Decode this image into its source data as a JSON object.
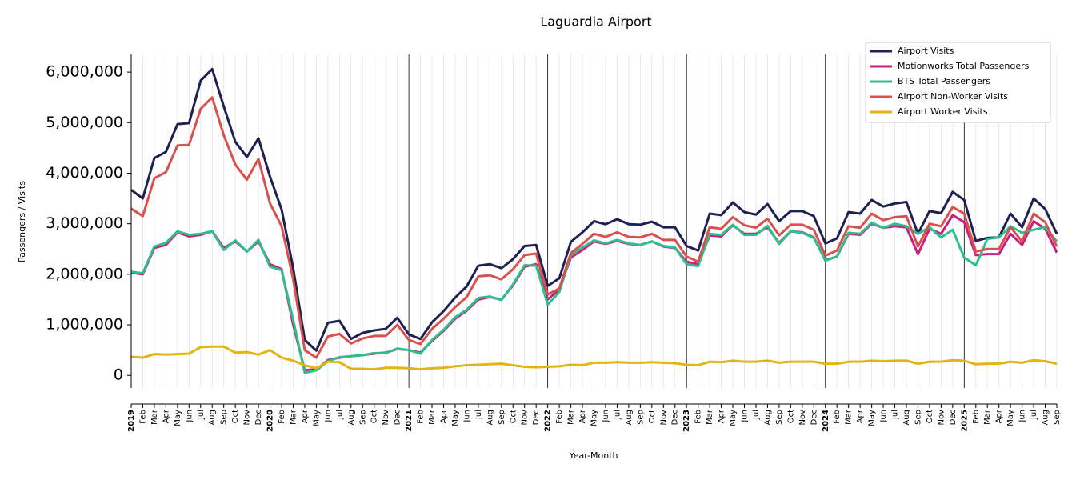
{
  "chart_data": {
    "type": "line",
    "title": "Laguardia Airport",
    "xlabel": "Year-Month",
    "ylabel": "Passengers / Visits",
    "categories": [
      "2019",
      "Feb",
      "Mar",
      "Apr",
      "May",
      "Jun",
      "Jul",
      "Aug",
      "Sep",
      "Oct",
      "Nov",
      "Dec",
      "2020",
      "Feb",
      "Mar",
      "Apr",
      "May",
      "Jun",
      "Jul",
      "Aug",
      "Sep",
      "Oct",
      "Nov",
      "Dec",
      "2021",
      "Feb",
      "Mar",
      "Apr",
      "May",
      "Jun",
      "Jul",
      "Aug",
      "Sep",
      "Oct",
      "Nov",
      "Dec",
      "2022",
      "Feb",
      "Mar",
      "Apr",
      "May",
      "Jun",
      "Jul",
      "Aug",
      "Sep",
      "Oct",
      "Nov",
      "Dec",
      "2023",
      "Feb",
      "Mar",
      "Apr",
      "May",
      "Jun",
      "Jul",
      "Aug",
      "Sep",
      "Oct",
      "Nov",
      "Dec",
      "2024",
      "Feb",
      "Mar",
      "Apr",
      "May",
      "Jun",
      "Jul",
      "Aug",
      "Sep",
      "Oct",
      "Nov",
      "Dec",
      "2025",
      "Feb",
      "Mar",
      "Apr",
      "May",
      "Jun",
      "Jul",
      "Aug",
      "Sep"
    ],
    "series": [
      {
        "name": "Airport Visits",
        "color": "#1f2152",
        "values": [
          3670000,
          3500000,
          4300000,
          4420000,
          4970000,
          4990000,
          5830000,
          6060000,
          5320000,
          4620000,
          4320000,
          4690000,
          3930000,
          3280000,
          2120000,
          700000,
          490000,
          1040000,
          1080000,
          720000,
          840000,
          890000,
          920000,
          1140000,
          810000,
          720000,
          1050000,
          1270000,
          1540000,
          1760000,
          2170000,
          2200000,
          2120000,
          2300000,
          2560000,
          2580000,
          1770000,
          1920000,
          2640000,
          2830000,
          3050000,
          2990000,
          3090000,
          2990000,
          2980000,
          3040000,
          2930000,
          2930000,
          2560000,
          2470000,
          3200000,
          3170000,
          3420000,
          3230000,
          3180000,
          3390000,
          3050000,
          3250000,
          3250000,
          3150000,
          2610000,
          2710000,
          3230000,
          3200000,
          3470000,
          3340000,
          3400000,
          3430000,
          2800000,
          3250000,
          3210000,
          3630000,
          3470000,
          2660000,
          2720000,
          2730000,
          3200000,
          2930000,
          3500000,
          3290000,
          2800000
        ]
      },
      {
        "name": "Motionworks Total Passengers",
        "color": "#c8207f",
        "values": [
          2030000,
          2000000,
          2520000,
          2580000,
          2830000,
          2750000,
          2780000,
          2850000,
          2520000,
          2650000,
          2450000,
          2650000,
          2200000,
          2100000,
          1000000,
          100000,
          120000,
          300000,
          350000,
          380000,
          400000,
          430000,
          450000,
          520000,
          500000,
          450000,
          680000,
          880000,
          1120000,
          1280000,
          1500000,
          1550000,
          1500000,
          1780000,
          2150000,
          2200000,
          1500000,
          1700000,
          2330000,
          2480000,
          2650000,
          2600000,
          2660000,
          2600000,
          2580000,
          2650000,
          2550000,
          2520000,
          2250000,
          2200000,
          2770000,
          2750000,
          2970000,
          2800000,
          2800000,
          2930000,
          2620000,
          2850000,
          2830000,
          2730000,
          2280000,
          2350000,
          2800000,
          2780000,
          3000000,
          2920000,
          2950000,
          2930000,
          2400000,
          2900000,
          2800000,
          3170000,
          3030000,
          2380000,
          2400000,
          2400000,
          2800000,
          2580000,
          3050000,
          2900000,
          2430000
        ]
      },
      {
        "name": "BTS Total Passengers",
        "color": "#2dbf8d",
        "values": [
          2050000,
          2020000,
          2550000,
          2620000,
          2850000,
          2780000,
          2800000,
          2850000,
          2480000,
          2670000,
          2450000,
          2680000,
          2150000,
          2080000,
          1100000,
          50000,
          100000,
          280000,
          360000,
          380000,
          400000,
          440000,
          440000,
          530000,
          500000,
          430000,
          700000,
          900000,
          1150000,
          1300000,
          1530000,
          1560000,
          1490000,
          1800000,
          2180000,
          2170000,
          1400000,
          1650000,
          2380000,
          2530000,
          2670000,
          2610000,
          2680000,
          2610000,
          2580000,
          2650000,
          2560000,
          2530000,
          2200000,
          2160000,
          2800000,
          2780000,
          2980000,
          2780000,
          2780000,
          2960000,
          2600000,
          2850000,
          2820000,
          2720000,
          2270000,
          2350000,
          2820000,
          2800000,
          3020000,
          2920000,
          3000000,
          2950000,
          2800000,
          2930000,
          2730000,
          2880000,
          2330000,
          2180000,
          2700000,
          2730000,
          2950000,
          2820000,
          2880000,
          2930000,
          2650000
        ]
      },
      {
        "name": "Airport Non-Worker Visits",
        "color": "#d9514e",
        "values": [
          3300000,
          3150000,
          3900000,
          4020000,
          4550000,
          4560000,
          5270000,
          5500000,
          4750000,
          4170000,
          3870000,
          4280000,
          3400000,
          2950000,
          1900000,
          500000,
          350000,
          770000,
          820000,
          630000,
          730000,
          780000,
          780000,
          1000000,
          700000,
          620000,
          920000,
          1120000,
          1350000,
          1550000,
          1960000,
          1980000,
          1900000,
          2100000,
          2380000,
          2410000,
          1600000,
          1720000,
          2420000,
          2600000,
          2800000,
          2740000,
          2830000,
          2740000,
          2730000,
          2800000,
          2680000,
          2680000,
          2350000,
          2250000,
          2930000,
          2900000,
          3130000,
          2970000,
          2920000,
          3100000,
          2770000,
          2980000,
          2980000,
          2880000,
          2370000,
          2470000,
          2950000,
          2920000,
          3200000,
          3070000,
          3130000,
          3150000,
          2550000,
          3000000,
          2950000,
          3330000,
          3200000,
          2450000,
          2500000,
          2500000,
          2930000,
          2650000,
          3200000,
          3030000,
          2550000
        ]
      },
      {
        "name": "Airport Worker Visits",
        "color": "#e0b514",
        "values": [
          370000,
          350000,
          420000,
          410000,
          420000,
          430000,
          560000,
          570000,
          570000,
          450000,
          460000,
          410000,
          500000,
          350000,
          290000,
          200000,
          140000,
          270000,
          260000,
          130000,
          130000,
          120000,
          150000,
          150000,
          140000,
          120000,
          140000,
          150000,
          180000,
          200000,
          210000,
          220000,
          230000,
          200000,
          170000,
          160000,
          170000,
          180000,
          210000,
          200000,
          250000,
          250000,
          260000,
          250000,
          250000,
          260000,
          250000,
          240000,
          210000,
          200000,
          270000,
          260000,
          290000,
          270000,
          270000,
          290000,
          250000,
          270000,
          270000,
          270000,
          230000,
          230000,
          270000,
          270000,
          290000,
          280000,
          290000,
          290000,
          230000,
          270000,
          270000,
          300000,
          290000,
          220000,
          230000,
          230000,
          270000,
          250000,
          300000,
          280000,
          230000
        ]
      }
    ],
    "ylim": [
      -250000,
      6350000
    ],
    "yticks": [
      0,
      {
        "value": 1000000,
        "label": "1,000,000"
      },
      {
        "value": 2000000,
        "label": "2,000,000"
      },
      {
        "value": 3000000,
        "label": "3,000,000"
      },
      {
        "value": 4000000,
        "label": "4,000,000"
      },
      {
        "value": 5000000,
        "label": "5,000,000"
      },
      {
        "value": 6000000,
        "label": "6,000,000"
      }
    ],
    "grid": true,
    "legend": "upper right"
  }
}
